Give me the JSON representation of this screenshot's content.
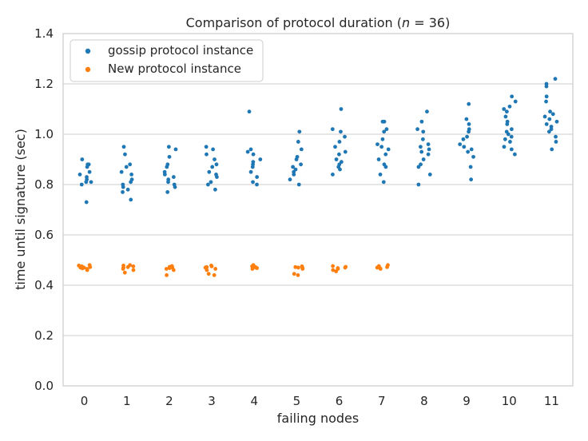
{
  "chart_data": {
    "type": "scatter",
    "title_prefix": "Comparison of protocol duration (",
    "title_var": "n",
    "title_eq": " = 36)",
    "xlabel": "failing nodes",
    "ylabel": "time until signature (sec)",
    "categories": [
      "0",
      "1",
      "2",
      "3",
      "4",
      "5",
      "6",
      "7",
      "8",
      "9",
      "10",
      "11"
    ],
    "ylim": [
      0.0,
      1.4
    ],
    "yticks": [
      "0.0",
      "0.2",
      "0.4",
      "0.6",
      "0.8",
      "1.0",
      "1.2",
      "1.4"
    ],
    "grid": "horizontal",
    "legend_position": "top-left",
    "series": [
      {
        "name": "gossip protocol instance",
        "color": "#1f77b4",
        "points": [
          [
            0,
            0.73
          ],
          [
            0,
            0.8
          ],
          [
            0,
            0.81
          ],
          [
            0,
            0.81
          ],
          [
            0,
            0.82
          ],
          [
            0,
            0.83
          ],
          [
            0,
            0.84
          ],
          [
            0,
            0.85
          ],
          [
            0,
            0.87
          ],
          [
            0,
            0.88
          ],
          [
            0,
            0.88
          ],
          [
            0,
            0.9
          ],
          [
            1,
            0.74
          ],
          [
            1,
            0.77
          ],
          [
            1,
            0.78
          ],
          [
            1,
            0.79
          ],
          [
            1,
            0.8
          ],
          [
            1,
            0.81
          ],
          [
            1,
            0.82
          ],
          [
            1,
            0.84
          ],
          [
            1,
            0.85
          ],
          [
            1,
            0.87
          ],
          [
            1,
            0.88
          ],
          [
            1,
            0.92
          ],
          [
            1,
            0.95
          ],
          [
            2,
            0.77
          ],
          [
            2,
            0.79
          ],
          [
            2,
            0.8
          ],
          [
            2,
            0.81
          ],
          [
            2,
            0.82
          ],
          [
            2,
            0.83
          ],
          [
            2,
            0.84
          ],
          [
            2,
            0.85
          ],
          [
            2,
            0.87
          ],
          [
            2,
            0.88
          ],
          [
            2,
            0.91
          ],
          [
            2,
            0.94
          ],
          [
            2,
            0.95
          ],
          [
            3,
            0.78
          ],
          [
            3,
            0.8
          ],
          [
            3,
            0.81
          ],
          [
            3,
            0.83
          ],
          [
            3,
            0.84
          ],
          [
            3,
            0.85
          ],
          [
            3,
            0.87
          ],
          [
            3,
            0.88
          ],
          [
            3,
            0.9
          ],
          [
            3,
            0.92
          ],
          [
            3,
            0.94
          ],
          [
            3,
            0.95
          ],
          [
            4,
            0.8
          ],
          [
            4,
            0.81
          ],
          [
            4,
            0.83
          ],
          [
            4,
            0.85
          ],
          [
            4,
            0.87
          ],
          [
            4,
            0.88
          ],
          [
            4,
            0.89
          ],
          [
            4,
            0.9
          ],
          [
            4,
            0.92
          ],
          [
            4,
            0.93
          ],
          [
            4,
            0.94
          ],
          [
            4,
            1.09
          ],
          [
            5,
            0.8
          ],
          [
            5,
            0.82
          ],
          [
            5,
            0.84
          ],
          [
            5,
            0.85
          ],
          [
            5,
            0.86
          ],
          [
            5,
            0.87
          ],
          [
            5,
            0.88
          ],
          [
            5,
            0.9
          ],
          [
            5,
            0.91
          ],
          [
            5,
            0.94
          ],
          [
            5,
            0.97
          ],
          [
            5,
            1.01
          ],
          [
            6,
            0.84
          ],
          [
            6,
            0.86
          ],
          [
            6,
            0.87
          ],
          [
            6,
            0.88
          ],
          [
            6,
            0.89
          ],
          [
            6,
            0.9
          ],
          [
            6,
            0.92
          ],
          [
            6,
            0.93
          ],
          [
            6,
            0.95
          ],
          [
            6,
            0.97
          ],
          [
            6,
            0.99
          ],
          [
            6,
            1.01
          ],
          [
            6,
            1.02
          ],
          [
            6,
            1.1
          ],
          [
            7,
            0.81
          ],
          [
            7,
            0.84
          ],
          [
            7,
            0.87
          ],
          [
            7,
            0.88
          ],
          [
            7,
            0.9
          ],
          [
            7,
            0.92
          ],
          [
            7,
            0.94
          ],
          [
            7,
            0.95
          ],
          [
            7,
            0.96
          ],
          [
            7,
            0.98
          ],
          [
            7,
            1.01
          ],
          [
            7,
            1.02
          ],
          [
            7,
            1.05
          ],
          [
            7,
            1.05
          ],
          [
            8,
            0.8
          ],
          [
            8,
            0.84
          ],
          [
            8,
            0.87
          ],
          [
            8,
            0.88
          ],
          [
            8,
            0.9
          ],
          [
            8,
            0.92
          ],
          [
            8,
            0.93
          ],
          [
            8,
            0.94
          ],
          [
            8,
            0.95
          ],
          [
            8,
            0.96
          ],
          [
            8,
            0.98
          ],
          [
            8,
            1.01
          ],
          [
            8,
            1.02
          ],
          [
            8,
            1.05
          ],
          [
            8,
            1.09
          ],
          [
            9,
            0.82
          ],
          [
            9,
            0.87
          ],
          [
            9,
            0.91
          ],
          [
            9,
            0.93
          ],
          [
            9,
            0.94
          ],
          [
            9,
            0.95
          ],
          [
            9,
            0.96
          ],
          [
            9,
            0.98
          ],
          [
            9,
            0.99
          ],
          [
            9,
            1.01
          ],
          [
            9,
            1.02
          ],
          [
            9,
            1.04
          ],
          [
            9,
            1.06
          ],
          [
            9,
            1.12
          ],
          [
            10,
            0.92
          ],
          [
            10,
            0.94
          ],
          [
            10,
            0.95
          ],
          [
            10,
            0.97
          ],
          [
            10,
            0.98
          ],
          [
            10,
            0.99
          ],
          [
            10,
            1.0
          ],
          [
            10,
            1.01
          ],
          [
            10,
            1.02
          ],
          [
            10,
            1.04
          ],
          [
            10,
            1.05
          ],
          [
            10,
            1.07
          ],
          [
            10,
            1.09
          ],
          [
            10,
            1.1
          ],
          [
            10,
            1.11
          ],
          [
            10,
            1.13
          ],
          [
            10,
            1.15
          ],
          [
            11,
            0.94
          ],
          [
            11,
            0.97
          ],
          [
            11,
            0.99
          ],
          [
            11,
            1.01
          ],
          [
            11,
            1.02
          ],
          [
            11,
            1.03
          ],
          [
            11,
            1.04
          ],
          [
            11,
            1.05
          ],
          [
            11,
            1.06
          ],
          [
            11,
            1.07
          ],
          [
            11,
            1.08
          ],
          [
            11,
            1.09
          ],
          [
            11,
            1.13
          ],
          [
            11,
            1.15
          ],
          [
            11,
            1.19
          ],
          [
            11,
            1.2
          ],
          [
            11,
            1.22
          ]
        ]
      },
      {
        "name": "New protocol instance",
        "color": "#ff7f0e",
        "points": [
          [
            0,
            0.46
          ],
          [
            0,
            0.465
          ],
          [
            0,
            0.467
          ],
          [
            0,
            0.47
          ],
          [
            0,
            0.47
          ],
          [
            0,
            0.472
          ],
          [
            0,
            0.475
          ],
          [
            0,
            0.478
          ],
          [
            0,
            0.48
          ],
          [
            1,
            0.45
          ],
          [
            1,
            0.46
          ],
          [
            1,
            0.465
          ],
          [
            1,
            0.47
          ],
          [
            1,
            0.472
          ],
          [
            1,
            0.475
          ],
          [
            1,
            0.478
          ],
          [
            1,
            0.48
          ],
          [
            2,
            0.44
          ],
          [
            2,
            0.46
          ],
          [
            2,
            0.465
          ],
          [
            2,
            0.468
          ],
          [
            2,
            0.47
          ],
          [
            2,
            0.473
          ],
          [
            2,
            0.476
          ],
          [
            3,
            0.44
          ],
          [
            3,
            0.445
          ],
          [
            3,
            0.46
          ],
          [
            3,
            0.465
          ],
          [
            3,
            0.47
          ],
          [
            3,
            0.472
          ],
          [
            3,
            0.475
          ],
          [
            3,
            0.478
          ],
          [
            4,
            0.465
          ],
          [
            4,
            0.468
          ],
          [
            4,
            0.47
          ],
          [
            4,
            0.472
          ],
          [
            4,
            0.475
          ],
          [
            4,
            0.478
          ],
          [
            4,
            0.48
          ],
          [
            5,
            0.44
          ],
          [
            5,
            0.445
          ],
          [
            5,
            0.465
          ],
          [
            5,
            0.468
          ],
          [
            5,
            0.47
          ],
          [
            5,
            0.472
          ],
          [
            5,
            0.475
          ],
          [
            6,
            0.455
          ],
          [
            6,
            0.46
          ],
          [
            6,
            0.465
          ],
          [
            6,
            0.468
          ],
          [
            6,
            0.47
          ],
          [
            6,
            0.473
          ],
          [
            6,
            0.476
          ],
          [
            7,
            0.465
          ],
          [
            7,
            0.468
          ],
          [
            7,
            0.47
          ],
          [
            7,
            0.472
          ],
          [
            7,
            0.476
          ],
          [
            7,
            0.48
          ]
        ]
      }
    ]
  }
}
